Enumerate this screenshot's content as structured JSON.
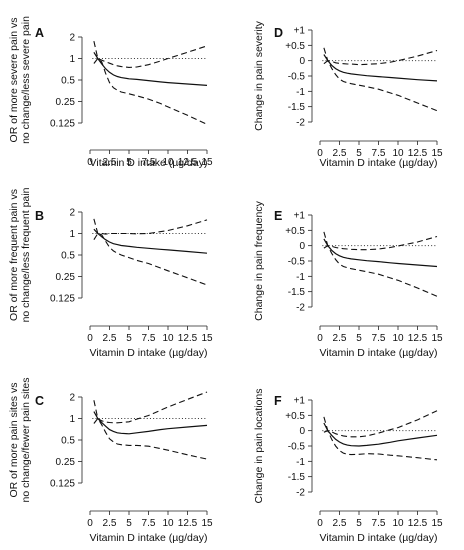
{
  "chart_data": [
    {
      "type": "line",
      "panel": "A",
      "xlabel": "Vitamin D intake (µg/day)",
      "ylabel": [
        "OR of more severe pain vs",
        "no change/less severe pain"
      ],
      "x_ticks": [
        "0",
        "2.5",
        "5",
        "7.5",
        "10",
        "12.5",
        "15"
      ],
      "x_tick_values": [
        0,
        2.5,
        5,
        7.5,
        10,
        12.5,
        15
      ],
      "y_scale": "log",
      "y_ticks": [
        "0.125",
        "0.25",
        "0.5",
        "1",
        "2"
      ],
      "y_tick_values": [
        0.125,
        0.25,
        0.5,
        1,
        2
      ],
      "reference_line": 1,
      "x": [
        0.5,
        1,
        1.5,
        2,
        2.5,
        3,
        3.5,
        4,
        5,
        6,
        7.5,
        9,
        10,
        12.5,
        15
      ],
      "estimate": [
        1.22,
        1.0,
        0.84,
        0.72,
        0.64,
        0.59,
        0.56,
        0.54,
        0.52,
        0.51,
        0.49,
        0.47,
        0.46,
        0.44,
        0.42
      ],
      "ci_lower": [
        0.85,
        1.0,
        0.9,
        0.62,
        0.46,
        0.39,
        0.36,
        0.34,
        0.32,
        0.3,
        0.27,
        0.235,
        0.21,
        0.16,
        0.12
      ],
      "ci_upper": [
        1.75,
        1.0,
        0.95,
        0.9,
        0.86,
        0.82,
        0.79,
        0.77,
        0.75,
        0.76,
        0.82,
        0.92,
        1.0,
        1.22,
        1.5
      ]
    },
    {
      "type": "line",
      "panel": "B",
      "xlabel": "Vitamin D intake (µg/day)",
      "ylabel": [
        "OR of more frequent pain vs",
        "no change/less frequent pain"
      ],
      "x_ticks": [
        "0",
        "2.5",
        "5",
        "7.5",
        "10",
        "12.5",
        "15"
      ],
      "x_tick_values": [
        0,
        2.5,
        5,
        7.5,
        10,
        12.5,
        15
      ],
      "y_scale": "log",
      "y_ticks": [
        "0.125",
        "0.25",
        "0.5",
        "1",
        "2"
      ],
      "y_tick_values": [
        0.125,
        0.25,
        0.5,
        1,
        2
      ],
      "reference_line": 1,
      "x": [
        0.5,
        1,
        1.5,
        2,
        2.5,
        3,
        3.5,
        4,
        5,
        6,
        7.5,
        9,
        10,
        12.5,
        15
      ],
      "estimate": [
        1.15,
        1.0,
        0.9,
        0.82,
        0.76,
        0.72,
        0.7,
        0.68,
        0.66,
        0.64,
        0.62,
        0.6,
        0.59,
        0.56,
        0.53
      ],
      "ci_lower": [
        0.82,
        1.0,
        0.96,
        0.78,
        0.64,
        0.57,
        0.53,
        0.5,
        0.46,
        0.42,
        0.38,
        0.33,
        0.3,
        0.24,
        0.19
      ],
      "ci_upper": [
        1.6,
        1.0,
        1.0,
        0.98,
        1.0,
        1.0,
        1.0,
        1.0,
        1.0,
        0.99,
        1.0,
        1.06,
        1.1,
        1.28,
        1.55
      ]
    },
    {
      "type": "line",
      "panel": "C",
      "xlabel": "Vitamin D intake (µg/day)",
      "ylabel": [
        "OR of more pain sites vs",
        "no change/fewer pain sites"
      ],
      "x_ticks": [
        "0",
        "2.5",
        "5",
        "7.5",
        "10",
        "12.5",
        "15"
      ],
      "x_tick_values": [
        0,
        2.5,
        5,
        7.5,
        10,
        12.5,
        15
      ],
      "y_scale": "log",
      "y_ticks": [
        "0.125",
        "0.25",
        "0.5",
        "1",
        "2"
      ],
      "y_tick_values": [
        0.125,
        0.25,
        0.5,
        1,
        2
      ],
      "reference_line": 1,
      "x": [
        0.5,
        1,
        1.5,
        2,
        2.5,
        3,
        3.5,
        4,
        5,
        6,
        7.5,
        9,
        10,
        12.5,
        15
      ],
      "estimate": [
        1.25,
        1.0,
        0.88,
        0.78,
        0.7,
        0.66,
        0.63,
        0.62,
        0.61,
        0.63,
        0.66,
        0.7,
        0.72,
        0.76,
        0.8
      ],
      "ci_lower": [
        0.85,
        1.0,
        0.82,
        0.64,
        0.52,
        0.47,
        0.44,
        0.43,
        0.42,
        0.42,
        0.41,
        0.38,
        0.36,
        0.31,
        0.27
      ],
      "ci_upper": [
        1.8,
        1.0,
        0.93,
        0.89,
        0.88,
        0.87,
        0.87,
        0.88,
        0.9,
        0.98,
        1.1,
        1.3,
        1.45,
        1.85,
        2.35
      ]
    },
    {
      "type": "line",
      "panel": "D",
      "xlabel": "Vitamin D intake (µg/day)",
      "ylabel": [
        "Change in pain severity"
      ],
      "x_ticks": [
        "0",
        "2.5",
        "5",
        "7.5",
        "10",
        "12.5",
        "15"
      ],
      "x_tick_values": [
        0,
        2.5,
        5,
        7.5,
        10,
        12.5,
        15
      ],
      "y_scale": "linear",
      "y_ticks": [
        "-2",
        "-1.5",
        "-1",
        "-0.5",
        "0",
        "+0.5",
        "+1"
      ],
      "y_tick_values": [
        -2,
        -1.5,
        -1,
        -0.5,
        0,
        0.5,
        1
      ],
      "reference_line": 0,
      "x": [
        0.5,
        1,
        1.5,
        2,
        2.5,
        3,
        3.5,
        4,
        5,
        6,
        7.5,
        9,
        10,
        12.5,
        15
      ],
      "estimate": [
        0.2,
        0.0,
        -0.15,
        -0.26,
        -0.33,
        -0.38,
        -0.41,
        -0.43,
        -0.46,
        -0.49,
        -0.52,
        -0.55,
        -0.57,
        -0.62,
        -0.66
      ],
      "ci_lower": [
        -0.1,
        0.0,
        -0.25,
        -0.45,
        -0.6,
        -0.68,
        -0.72,
        -0.75,
        -0.8,
        -0.85,
        -0.93,
        -1.05,
        -1.13,
        -1.38,
        -1.63
      ],
      "ci_upper": [
        0.42,
        0.0,
        -0.02,
        -0.07,
        -0.09,
        -0.1,
        -0.11,
        -0.11,
        -0.13,
        -0.12,
        -0.1,
        -0.05,
        0.0,
        0.15,
        0.33
      ]
    },
    {
      "type": "line",
      "panel": "E",
      "xlabel": "Vitamin D intake (µg/day)",
      "ylabel": [
        "Change in pain frequency"
      ],
      "x_ticks": [
        "0",
        "2.5",
        "5",
        "7.5",
        "10",
        "12.5",
        "15"
      ],
      "x_tick_values": [
        0,
        2.5,
        5,
        7.5,
        10,
        12.5,
        15
      ],
      "y_scale": "linear",
      "y_ticks": [
        "-2",
        "-1.5",
        "-1",
        "-0.5",
        "0",
        "+0.5",
        "+1"
      ],
      "y_tick_values": [
        -2,
        -1.5,
        -1,
        -0.5,
        0,
        0.5,
        1
      ],
      "reference_line": 0,
      "x": [
        0.5,
        1,
        1.5,
        2,
        2.5,
        3,
        3.5,
        4,
        5,
        6,
        7.5,
        9,
        10,
        12.5,
        15
      ],
      "estimate": [
        0.22,
        0.0,
        -0.15,
        -0.26,
        -0.33,
        -0.38,
        -0.41,
        -0.43,
        -0.46,
        -0.49,
        -0.52,
        -0.56,
        -0.58,
        -0.63,
        -0.68
      ],
      "ci_lower": [
        -0.08,
        0.0,
        -0.25,
        -0.45,
        -0.6,
        -0.68,
        -0.72,
        -0.75,
        -0.8,
        -0.85,
        -0.93,
        -1.05,
        -1.13,
        -1.38,
        -1.65
      ],
      "ci_upper": [
        0.45,
        0.0,
        -0.02,
        -0.06,
        -0.08,
        -0.1,
        -0.11,
        -0.12,
        -0.13,
        -0.13,
        -0.11,
        -0.06,
        -0.01,
        0.12,
        0.3
      ]
    },
    {
      "type": "line",
      "panel": "F",
      "xlabel": "Vitamin D intake (µg/day)",
      "ylabel": [
        "Change in pain locations"
      ],
      "x_ticks": [
        "0",
        "2.5",
        "5",
        "7.5",
        "10",
        "12.5",
        "15"
      ],
      "x_tick_values": [
        0,
        2.5,
        5,
        7.5,
        10,
        12.5,
        15
      ],
      "y_scale": "linear",
      "y_ticks": [
        "-2",
        "-1.5",
        "-1",
        "-0.5",
        "0",
        "+0.5",
        "+1"
      ],
      "y_tick_values": [
        -2,
        -1.5,
        -1,
        -0.5,
        0,
        0.5,
        1
      ],
      "reference_line": 0,
      "x": [
        0.5,
        1,
        1.5,
        2,
        2.5,
        3,
        3.5,
        4,
        5,
        6,
        7.5,
        9,
        10,
        12.5,
        15
      ],
      "estimate": [
        0.25,
        0.0,
        -0.15,
        -0.28,
        -0.37,
        -0.43,
        -0.47,
        -0.49,
        -0.5,
        -0.48,
        -0.44,
        -0.38,
        -0.33,
        -0.24,
        -0.15
      ],
      "ci_lower": [
        -0.05,
        0.0,
        -0.28,
        -0.5,
        -0.65,
        -0.73,
        -0.77,
        -0.78,
        -0.77,
        -0.75,
        -0.76,
        -0.8,
        -0.82,
        -0.88,
        -0.95
      ],
      "ci_upper": [
        0.45,
        0.0,
        -0.04,
        -0.1,
        -0.14,
        -0.17,
        -0.19,
        -0.2,
        -0.2,
        -0.17,
        -0.08,
        0.03,
        0.1,
        0.35,
        0.65
      ]
    }
  ]
}
